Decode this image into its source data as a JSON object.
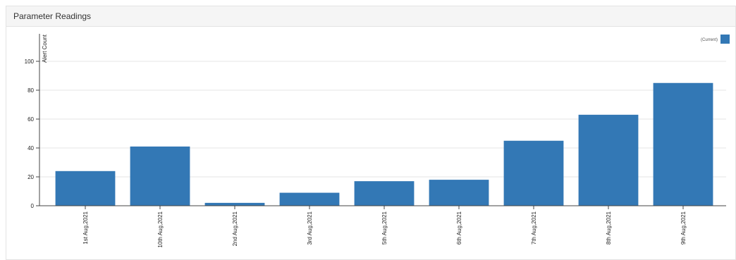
{
  "panel": {
    "title": "Parameter Readings"
  },
  "colors": {
    "bar": "#3378b5",
    "grid": "#e6e6e6",
    "axis": "#444444"
  },
  "chart_data": {
    "type": "bar",
    "title": "",
    "xlabel": "",
    "ylabel": "Alert Count",
    "ylim": [
      0,
      100
    ],
    "yticks": [
      0,
      20,
      40,
      60,
      80,
      100
    ],
    "grid": true,
    "legend": {
      "placement": "top-right",
      "entries": [
        "(Current)"
      ]
    },
    "categories": [
      "1st Aug,2021",
      "10th Aug,2021",
      "2nd Aug,2021",
      "3rd Aug,2021",
      "5th Aug,2021",
      "6th Aug,2021",
      "7th Aug,2021",
      "8th Aug,2021",
      "9th Aug,2021"
    ],
    "series": [
      {
        "name": "(Current)",
        "values": [
          24,
          41,
          2,
          9,
          17,
          18,
          45,
          63,
          85
        ]
      }
    ]
  }
}
